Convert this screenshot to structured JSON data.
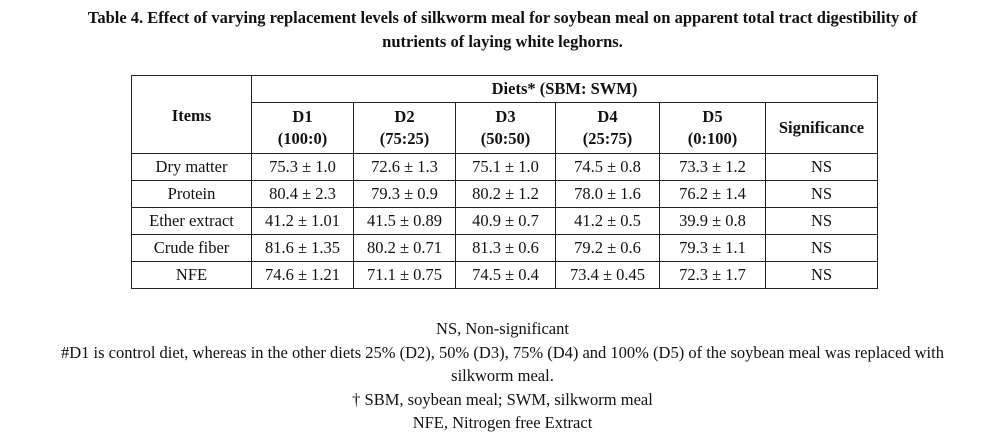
{
  "caption": {
    "line1": "Table 4. Effect of varying replacement levels of silkworm meal for soybean meal on apparent total tract digestibility of",
    "line2": "nutrients of laying white leghorns."
  },
  "table": {
    "items_header": "Items",
    "group_header": "Diets* (SBM: SWM)",
    "significance_header": "Significance",
    "diets": [
      {
        "name": "D1",
        "ratio": "(100:0)"
      },
      {
        "name": "D2",
        "ratio": "(75:25)"
      },
      {
        "name": "D3",
        "ratio": "(50:50)"
      },
      {
        "name": "D4",
        "ratio": "(25:75)"
      },
      {
        "name": "D5",
        "ratio": "(0:100)"
      }
    ],
    "rows": [
      {
        "item": "Dry matter",
        "values": [
          "75.3 ± 1.0",
          "72.6 ± 1.3",
          "75.1 ± 1.0",
          "74.5 ± 0.8",
          "73.3 ± 1.2"
        ],
        "significance": "NS"
      },
      {
        "item": "Protein",
        "values": [
          "80.4 ± 2.3",
          "79.3 ± 0.9",
          "80.2 ± 1.2",
          "78.0 ± 1.6",
          "76.2 ± 1.4"
        ],
        "significance": "NS"
      },
      {
        "item": "Ether extract",
        "values": [
          "41.2 ± 1.01",
          "41.5 ± 0.89",
          "40.9 ± 0.7",
          "41.2 ± 0.5",
          "39.9 ± 0.8"
        ],
        "significance": "NS"
      },
      {
        "item": "Crude fiber",
        "values": [
          "81.6 ± 1.35",
          "80.2 ± 0.71",
          "81.3 ± 0.6",
          "79.2 ± 0.6",
          "79.3 ± 1.1"
        ],
        "significance": "NS"
      },
      {
        "item": "NFE",
        "values": [
          "74.6 ± 1.21",
          "71.1 ± 0.75",
          "74.5 ± 0.4",
          "73.4 ± 0.45",
          "72.3 ± 1.7"
        ],
        "significance": "NS"
      }
    ]
  },
  "notes": {
    "ns": "NS, Non-significant",
    "control_line1": "#D1 is control diet, whereas in the other diets 25% (D2), 50% (D3), 75% (D4) and 100% (D5) of the soybean meal was replaced with",
    "control_line2": "silkworm meal.",
    "abbrev": "† SBM, soybean meal; SWM, silkworm meal",
    "nfe": "NFE, Nitrogen free Extract"
  }
}
